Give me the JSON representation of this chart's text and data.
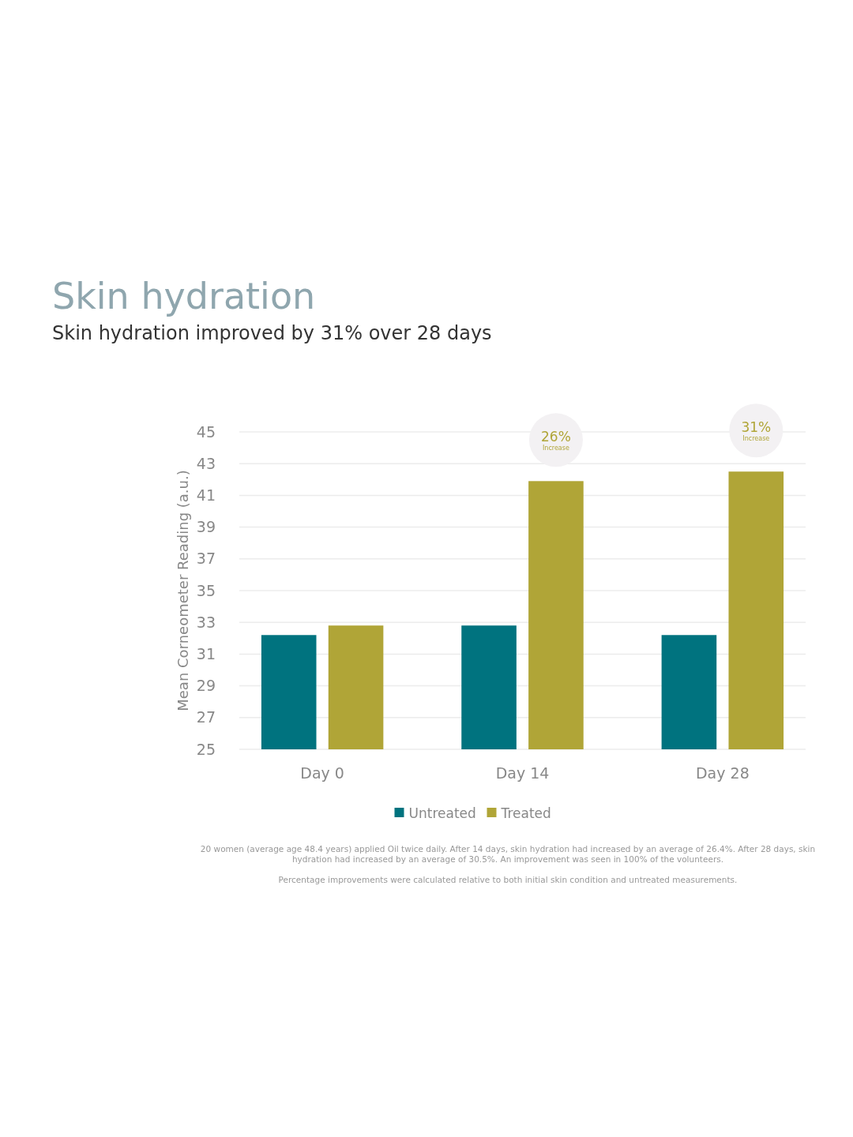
{
  "chart_data": {
    "type": "bar",
    "title": "Skin hydration",
    "subtitle": "Skin hydration improved by 31% over 28 days",
    "ylabel": "Mean Corneometer Reading (a.u.)",
    "categories": [
      "Day 0",
      "Day 14",
      "Day 28"
    ],
    "series": [
      {
        "name": "Untreated",
        "color": "#00737f",
        "values": [
          32.2,
          32.8,
          32.2
        ]
      },
      {
        "name": "Treated",
        "color": "#b0a537",
        "values": [
          32.8,
          41.9,
          42.5
        ]
      }
    ],
    "ylim": [
      25,
      45
    ],
    "yticks": [
      25,
      27,
      29,
      31,
      33,
      35,
      37,
      39,
      41,
      43,
      45
    ],
    "grid": "y",
    "legend": "bottom",
    "annotations": [
      "26%",
      "Increase",
      "31%",
      "Increase",
      "20 women (average age 48.4 years) applied Oil twice daily. After 14 days, skin hydration had increased by an average of 26.4%. After 28 days, skin hydration had increased by an average of 30.5%. An improvement was seen in 100% of the volunteers.",
      "Percentage improvements were calculated relative to both initial skin condition and untreated measurements."
    ]
  }
}
